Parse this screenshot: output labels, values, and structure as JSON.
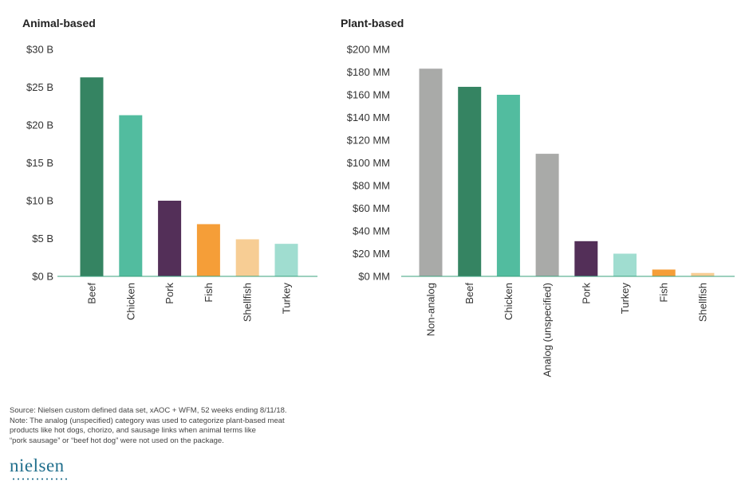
{
  "chart_data": [
    {
      "type": "bar",
      "title": "Animal-based",
      "categories": [
        "Beef",
        "Chicken",
        "Pork",
        "Fish",
        "Shellfish",
        "Turkey"
      ],
      "values": [
        26.3,
        21.3,
        10.0,
        6.9,
        4.9,
        4.3
      ],
      "colors": [
        "#358462",
        "#52bc9f",
        "#532f58",
        "#f59e38",
        "#f7cd94",
        "#a0ddd0"
      ],
      "ylim": [
        0,
        30
      ],
      "ticks": [
        0,
        5,
        10,
        15,
        20,
        25,
        30
      ],
      "tick_labels": [
        "$0 B",
        "$5 B",
        "$10 B",
        "$15 B",
        "$20 B",
        "$25 B",
        "$30 B"
      ],
      "grid": false
    },
    {
      "type": "bar",
      "title": "Plant-based",
      "categories": [
        "Non-analog",
        "Beef",
        "Chicken",
        "Analog (unspecified)",
        "Pork",
        "Turkey",
        "Fish",
        "Shellfish"
      ],
      "values": [
        183,
        167,
        160,
        108,
        31,
        20,
        6,
        3
      ],
      "colors": [
        "#a9aaa8",
        "#358462",
        "#52bc9f",
        "#a9aaa8",
        "#532f58",
        "#a0ddd0",
        "#f59e38",
        "#f7cd94"
      ],
      "ylim": [
        0,
        200
      ],
      "ticks": [
        0,
        20,
        40,
        60,
        80,
        100,
        120,
        140,
        160,
        180,
        200
      ],
      "tick_labels": [
        "$0 MM",
        "$20 MM",
        "$40 MM",
        "$60 MM",
        "$80 MM",
        "$100 MM",
        "$120 MM",
        "$140 MM",
        "$160 MM",
        "$180 MM",
        "$200 MM"
      ],
      "grid": false
    }
  ],
  "footnote": {
    "lines": [
      "Source: Nielsen custom defined data set, xAOC + WFM, 52 weeks ending 8/11/18.",
      "Note: The analog (unspecified) category was used to categorize plant-based meat",
      "products like hot dogs, chorizo, and sausage links when animal terms like",
      "“pork sausage” or “beef hot dog” were not used on the package."
    ]
  },
  "logo": {
    "text": "nielsen"
  },
  "axis_color": "#3aa17e"
}
